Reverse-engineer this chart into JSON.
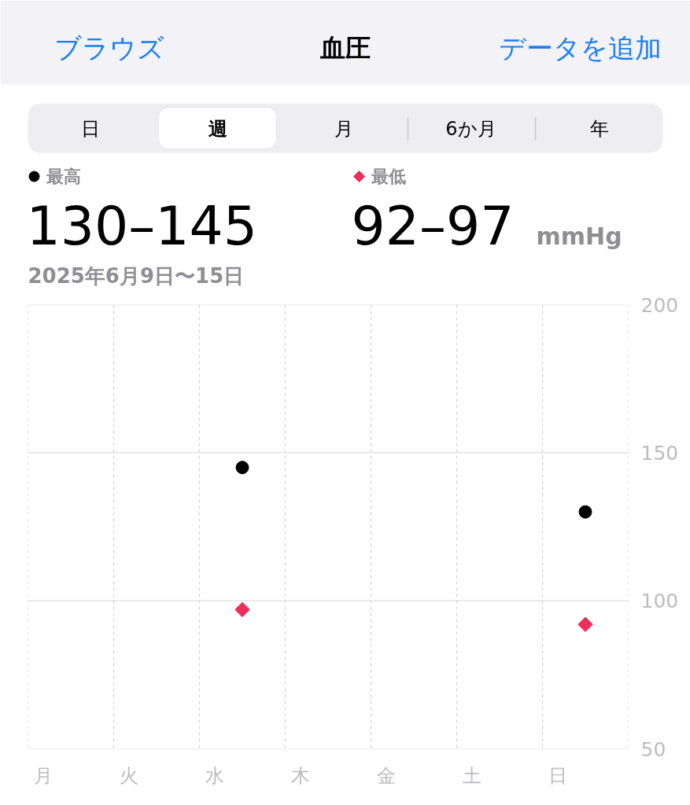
{
  "chart_data": {
    "type": "scatter",
    "title": "血圧",
    "subtitle": "2025年6月9日〜15日",
    "annotations": [
      "ブラウズ",
      "データを追加",
      "日",
      "週",
      "月",
      "6か月",
      "年",
      "130–145",
      "92–97",
      "mmHg"
    ],
    "categories": [
      "月",
      "火",
      "水",
      "木",
      "金",
      "土",
      "日"
    ],
    "series": [
      {
        "name": "最高",
        "color": "#000000",
        "marker": "circle",
        "values": [
          null,
          null,
          145,
          null,
          null,
          null,
          130
        ]
      },
      {
        "name": "最低",
        "color": "#ee2d58",
        "marker": "diamond",
        "values": [
          null,
          null,
          97,
          null,
          null,
          null,
          92
        ]
      }
    ],
    "ylim": [
      50,
      200
    ],
    "yticks": [
      50,
      100,
      150,
      200
    ],
    "grid": true,
    "legend": "top"
  }
}
